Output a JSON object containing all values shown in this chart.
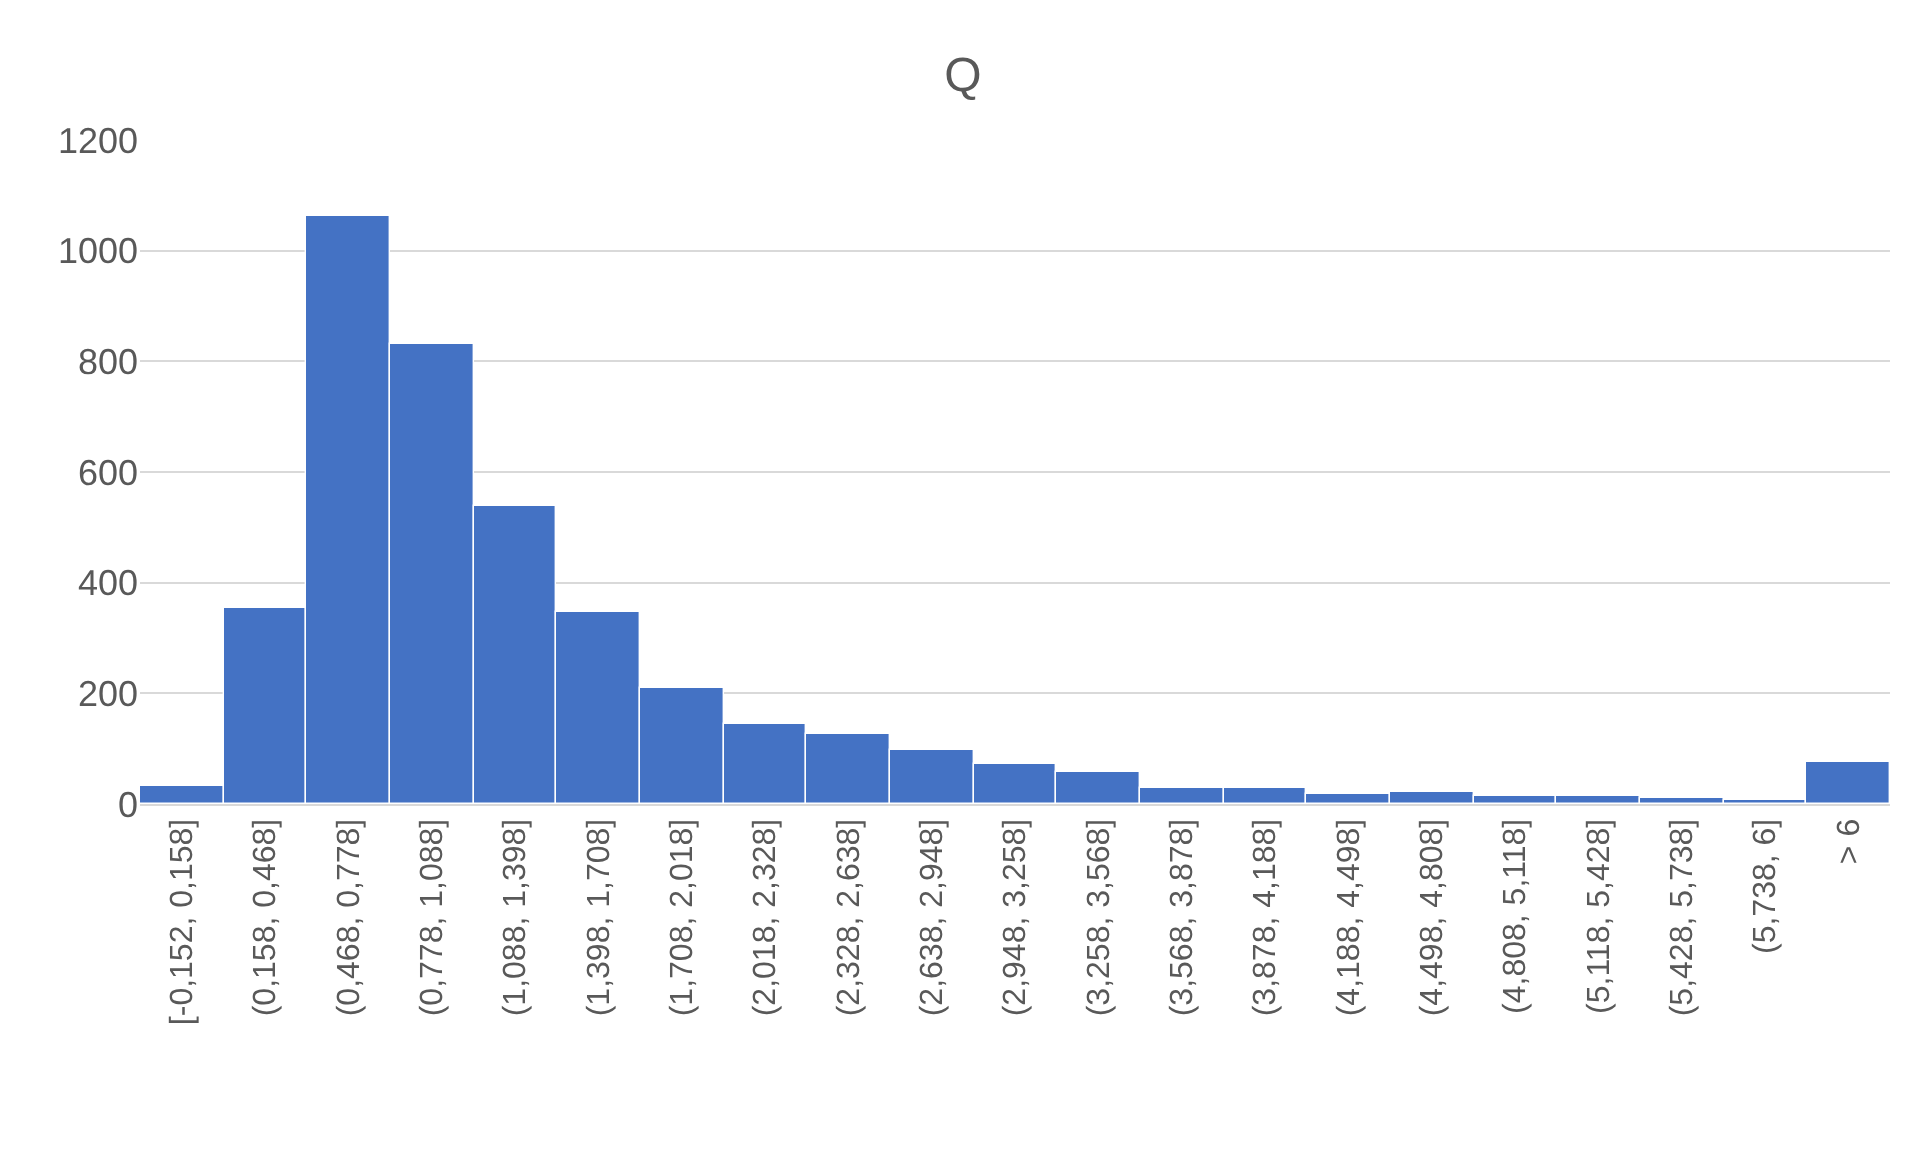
{
  "chart_data": {
    "type": "bar",
    "title": "Q",
    "categories": [
      "[-0,152, 0,158]",
      "(0,158, 0,468]",
      "(0,468, 0,778]",
      "(0,778, 1,088]",
      "(1,088, 1,398]",
      "(1,398, 1,708]",
      "(1,708, 2,018]",
      "(2,018, 2,328]",
      "(2,328, 2,638]",
      "(2,638, 2,948]",
      "(2,948, 3,258]",
      "(3,258, 3,568]",
      "(3,568, 3,878]",
      "(3,878, 4,188]",
      "(4,188, 4,498]",
      "(4,498, 4,808]",
      "(4,808, 5,118]",
      "(5,118, 5,428]",
      "(5,428, 5,738]",
      "(5,738, 6]",
      "> 6"
    ],
    "values": [
      32,
      353,
      1063,
      830,
      538,
      346,
      208,
      146,
      127,
      97,
      71,
      59,
      30,
      28,
      18,
      20,
      16,
      15,
      11,
      6,
      76
    ],
    "color": "#4472c4",
    "ylim": [
      0,
      1200
    ],
    "yticks": [
      0,
      200,
      400,
      600,
      800,
      1000,
      1200
    ],
    "grid": "y",
    "legend": false
  }
}
